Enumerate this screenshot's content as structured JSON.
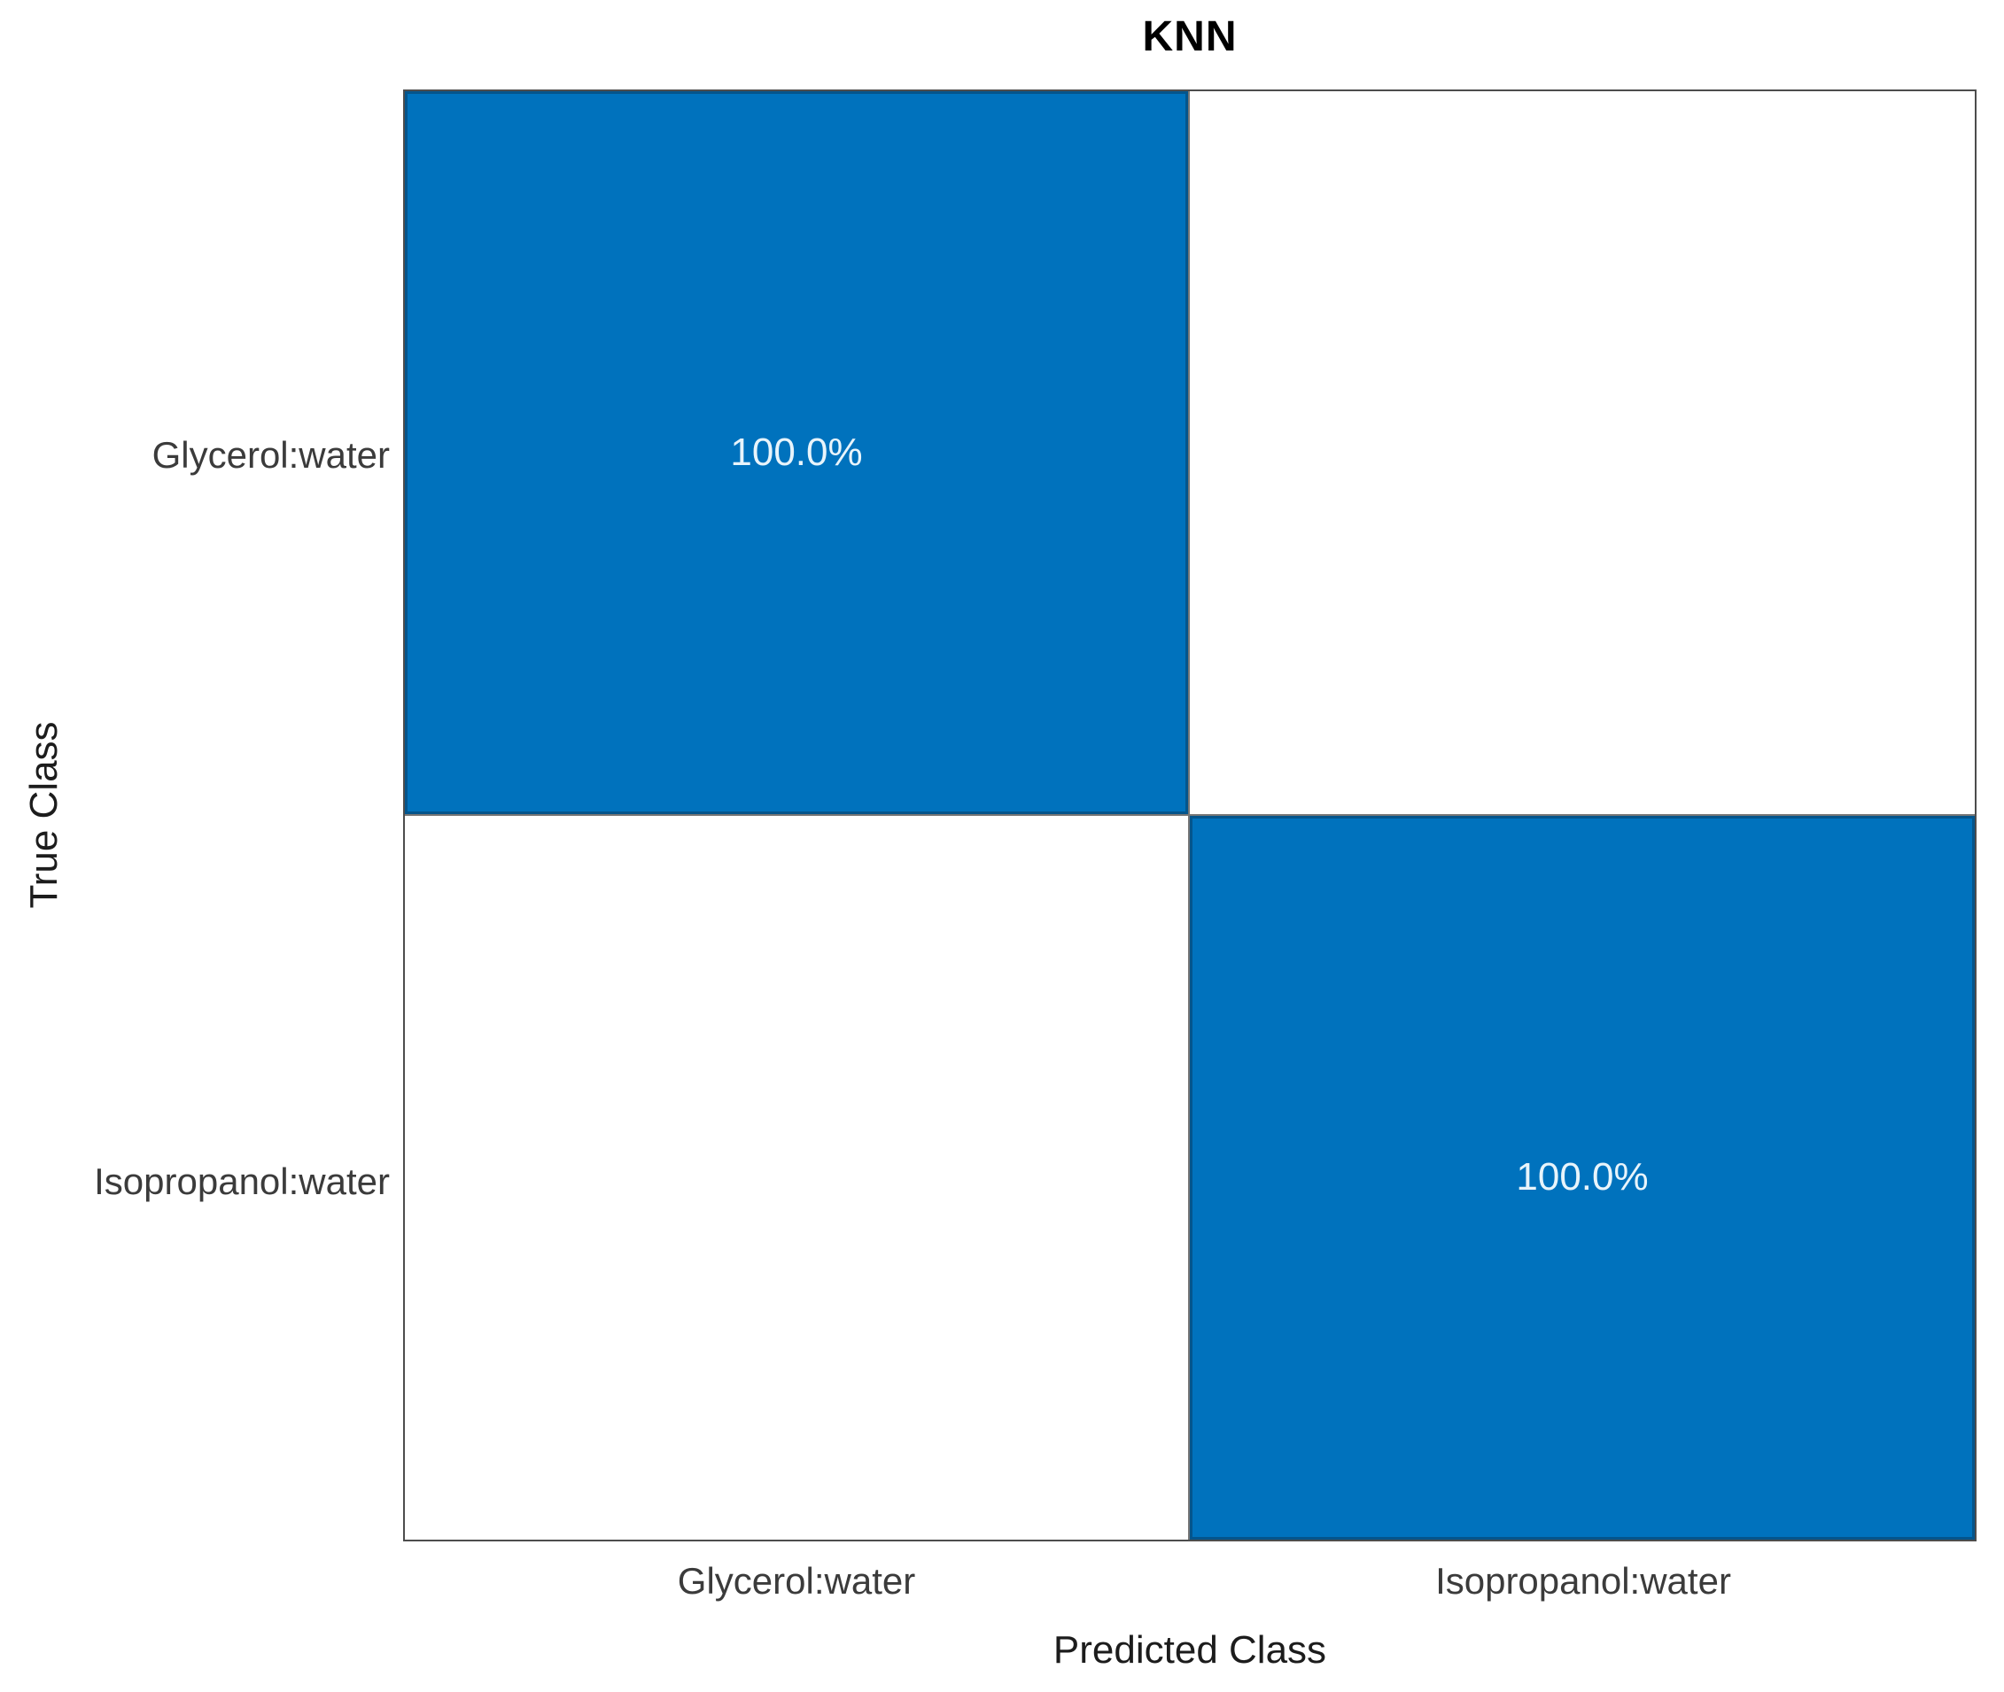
{
  "chart_data": {
    "type": "heatmap",
    "variant": "confusion_matrix",
    "title": "KNN",
    "xlabel": "Predicted Class",
    "ylabel": "True Class",
    "x_tick_labels": [
      "Glycerol:water",
      "Isopropanol:water"
    ],
    "y_tick_labels": [
      "Glycerol:water",
      "Isopropanol:water"
    ],
    "normalization": "row_percent",
    "matrix_percent": [
      [
        100.0,
        0.0
      ],
      [
        0.0,
        100.0
      ]
    ],
    "cells": [
      {
        "row": 0,
        "col": 0,
        "label": "100.0%",
        "filled": true
      },
      {
        "row": 0,
        "col": 1,
        "label": "",
        "filled": false
      },
      {
        "row": 1,
        "col": 0,
        "label": "",
        "filled": false
      },
      {
        "row": 1,
        "col": 1,
        "label": "100.0%",
        "filled": true
      }
    ],
    "legend": "none",
    "grid": "2x2",
    "colors": {
      "filled_cell": "#0072BD",
      "empty_cell": "#FFFFFF",
      "cell_text": "#E8F4FB",
      "grid_line": "#767676",
      "outer_border": "#4D4D4D",
      "tick_label": "#3B3B3B",
      "axis_label": "#1C1C1C",
      "title": "#000000"
    }
  }
}
